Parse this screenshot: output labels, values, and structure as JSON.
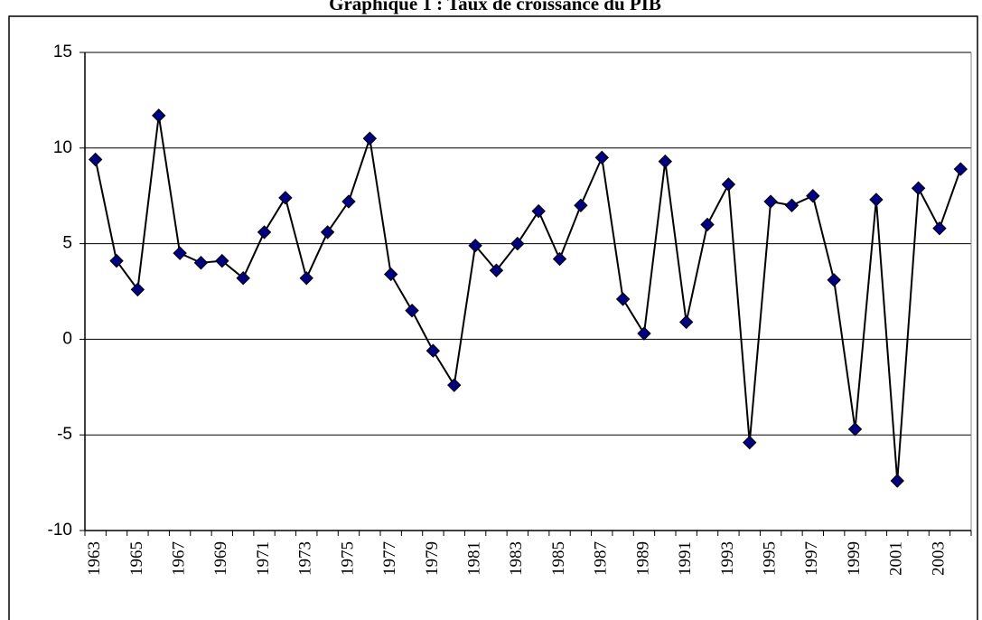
{
  "chart_data": {
    "type": "line",
    "title": "Graphique 1 : Taux de croissance du PIB",
    "categories": [
      "1963",
      null,
      "1965",
      null,
      "1967",
      null,
      "1969",
      null,
      "1971",
      null,
      "1973",
      null,
      "1975",
      null,
      "1977",
      null,
      "1979",
      null,
      "1981",
      null,
      "1983",
      null,
      "1985",
      null,
      "1987",
      null,
      "1989",
      null,
      "1991",
      null,
      "1993",
      null,
      "1995",
      null,
      "1997",
      null,
      "1999",
      null,
      "2001",
      null,
      "2003",
      null
    ],
    "values": [
      9.4,
      4.1,
      2.6,
      11.7,
      4.5,
      4.0,
      4.1,
      3.2,
      5.6,
      7.4,
      3.2,
      5.6,
      7.2,
      10.5,
      3.4,
      1.5,
      -0.6,
      -2.4,
      4.9,
      3.6,
      5.0,
      6.7,
      4.2,
      7.0,
      9.5,
      2.1,
      0.3,
      9.3,
      0.9,
      6.0,
      8.1,
      -5.4,
      7.2,
      7.0,
      7.5,
      3.1,
      -4.7,
      7.3,
      -7.4,
      7.9,
      5.8,
      8.9
    ],
    "color": "#000000",
    "marker_color": "#000080",
    "ylim": [
      -10,
      15
    ],
    "yticks": [
      -10,
      -5,
      0,
      5,
      10,
      15
    ],
    "grid": true
  }
}
